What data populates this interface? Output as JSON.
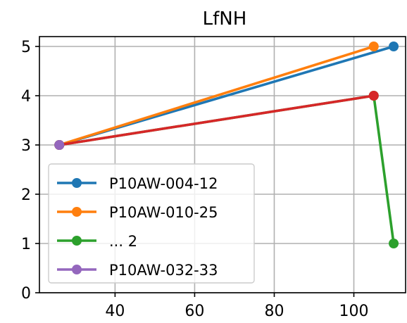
{
  "chart_data": {
    "type": "line",
    "title": "LfNH",
    "xlabel": "",
    "ylabel": "",
    "xlim": [
      21,
      113
    ],
    "ylim": [
      0,
      5.2
    ],
    "xticks": [
      40,
      60,
      80,
      100
    ],
    "yticks": [
      0,
      1,
      2,
      3,
      4,
      5
    ],
    "grid": true,
    "legend_position": "lower-left",
    "series": [
      {
        "name": "P10AW-004-12",
        "color": "#1f77b4",
        "x": [
          26,
          110
        ],
        "y": [
          3,
          5
        ]
      },
      {
        "name": "P10AW-010-25",
        "color": "#ff7f0e",
        "x": [
          26,
          105
        ],
        "y": [
          3,
          5
        ]
      },
      {
        "name": "... 2",
        "color": "#2ca02c",
        "x": [
          26,
          105,
          110
        ],
        "y": [
          3,
          4,
          1
        ]
      },
      {
        "name": "",
        "color": "#d62728",
        "x": [
          26,
          105
        ],
        "y": [
          3,
          4
        ]
      },
      {
        "name": "P10AW-032-33",
        "color": "#9467bd",
        "x": [
          26
        ],
        "y": [
          3
        ]
      }
    ],
    "legend_entries": [
      "P10AW-004-12",
      "P10AW-010-25",
      "... 2",
      "P10AW-032-33"
    ]
  }
}
